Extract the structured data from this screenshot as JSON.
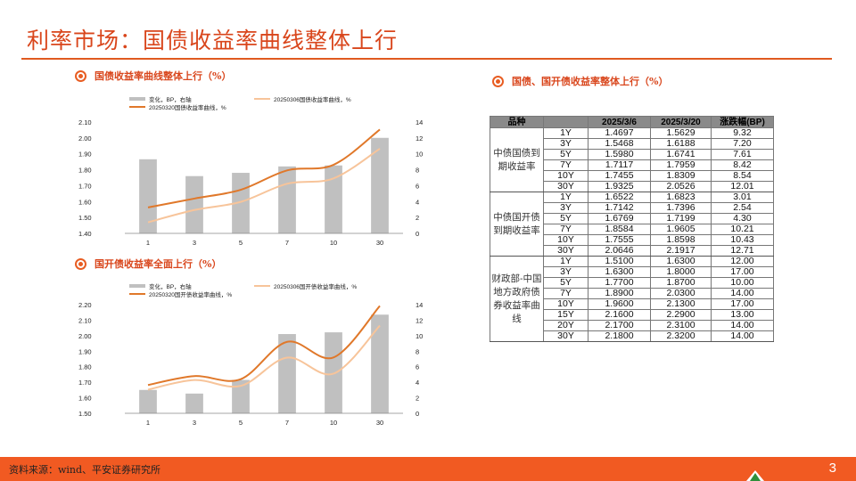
{
  "page": {
    "title": "利率市场：国债收益率曲线整体上行",
    "source": "资料来源：wind、平安证券研究所",
    "page_number": "3"
  },
  "sections": {
    "chart1_title": "国债收益率曲线整体上行（%）",
    "chart2_title": "国开债收益率全面上行（%）",
    "table_title": "国债、国开债收益率整体上行（%）"
  },
  "colors": {
    "bar": "#c0c0c0",
    "line_0306": "#f7c49a",
    "line_0320": "#e0782a",
    "accent": "#e05a1f"
  },
  "chart_data": [
    {
      "type": "bar",
      "categories": [
        "1",
        "3",
        "5",
        "7",
        "10",
        "30"
      ],
      "left_axis": {
        "ylim": [
          1.4,
          2.1
        ],
        "ticks": [
          "1.40",
          "1.50",
          "1.60",
          "1.70",
          "1.80",
          "1.90",
          "2.00",
          "2.10"
        ]
      },
      "right_axis": {
        "ylim": [
          0,
          14
        ],
        "ticks": [
          "0",
          "2",
          "4",
          "6",
          "8",
          "10",
          "12",
          "14"
        ]
      },
      "series": [
        {
          "name": "变化，BP，右轴",
          "kind": "bar",
          "axis": "right",
          "values": [
            9.32,
            7.2,
            7.61,
            8.42,
            8.54,
            12.01
          ]
        },
        {
          "name": "20250306国债收益率曲线，%",
          "kind": "line",
          "axis": "left",
          "values": [
            1.4697,
            1.5468,
            1.598,
            1.7117,
            1.7455,
            1.9325
          ]
        },
        {
          "name": "20250320国债收益率曲线，%",
          "kind": "line",
          "axis": "left",
          "values": [
            1.5629,
            1.6188,
            1.6741,
            1.7959,
            1.8309,
            2.0526
          ]
        }
      ]
    },
    {
      "type": "bar",
      "categories": [
        "1",
        "3",
        "5",
        "7",
        "10",
        "30"
      ],
      "left_axis": {
        "ylim": [
          1.5,
          2.2
        ],
        "ticks": [
          "1.50",
          "1.60",
          "1.70",
          "1.80",
          "1.90",
          "2.00",
          "2.10",
          "2.20"
        ]
      },
      "right_axis": {
        "ylim": [
          0,
          14
        ],
        "ticks": [
          "0",
          "2",
          "4",
          "6",
          "8",
          "10",
          "12",
          "14"
        ]
      },
      "series": [
        {
          "name": "变化，BP，右轴",
          "kind": "bar",
          "axis": "right",
          "values": [
            3.01,
            2.54,
            4.3,
            10.21,
            10.43,
            12.71
          ]
        },
        {
          "name": "20250306国开债收益率曲线，%",
          "kind": "line",
          "axis": "left",
          "values": [
            1.6522,
            1.7142,
            1.6769,
            1.8584,
            1.7555,
            2.0646
          ]
        },
        {
          "name": "20250320国开债收益率曲线，%",
          "kind": "line",
          "axis": "left",
          "values": [
            1.6823,
            1.7396,
            1.7199,
            1.9605,
            1.8598,
            2.1917
          ]
        }
      ]
    },
    {
      "type": "table",
      "headers": [
        "品种",
        "",
        "2025/3/6",
        "2025/3/20",
        "涨跌幅(BP)"
      ],
      "groups": [
        {
          "name": "中债国债到期收益率",
          "rows": [
            [
              "1Y",
              "1.4697",
              "1.5629",
              "9.32"
            ],
            [
              "3Y",
              "1.5468",
              "1.6188",
              "7.20"
            ],
            [
              "5Y",
              "1.5980",
              "1.6741",
              "7.61"
            ],
            [
              "7Y",
              "1.7117",
              "1.7959",
              "8.42"
            ],
            [
              "10Y",
              "1.7455",
              "1.8309",
              "8.54"
            ],
            [
              "30Y",
              "1.9325",
              "2.0526",
              "12.01"
            ]
          ]
        },
        {
          "name": "中债国开债到期收益率",
          "rows": [
            [
              "1Y",
              "1.6522",
              "1.6823",
              "3.01"
            ],
            [
              "3Y",
              "1.7142",
              "1.7396",
              "2.54"
            ],
            [
              "5Y",
              "1.6769",
              "1.7199",
              "4.30"
            ],
            [
              "7Y",
              "1.8584",
              "1.9605",
              "10.21"
            ],
            [
              "10Y",
              "1.7555",
              "1.8598",
              "10.43"
            ],
            [
              "30Y",
              "2.0646",
              "2.1917",
              "12.71"
            ]
          ]
        },
        {
          "name": "财政部-中国地方政府债券收益率曲线",
          "rows": [
            [
              "1Y",
              "1.5100",
              "1.6300",
              "12.00"
            ],
            [
              "3Y",
              "1.6300",
              "1.8000",
              "17.00"
            ],
            [
              "5Y",
              "1.7700",
              "1.8700",
              "10.00"
            ],
            [
              "7Y",
              "1.8900",
              "2.0300",
              "14.00"
            ],
            [
              "10Y",
              "1.9600",
              "2.1300",
              "17.00"
            ],
            [
              "15Y",
              "2.1600",
              "2.2900",
              "13.00"
            ],
            [
              "20Y",
              "2.1700",
              "2.3100",
              "14.00"
            ],
            [
              "30Y",
              "2.1800",
              "2.3200",
              "14.00"
            ]
          ]
        }
      ]
    }
  ]
}
